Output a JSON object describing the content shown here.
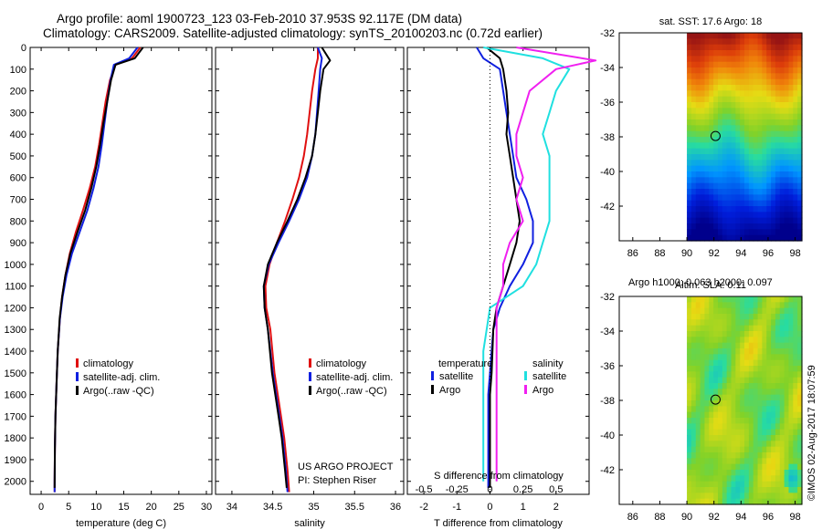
{
  "title": {
    "line1": "Argo profile: aoml 1900723_123 03-Feb-2010 37.953S 92.117E (DM data)",
    "line2": "Climatology: CARS2009. Satellite-adjusted climatology: synTS_20100203.nc (0.72d earlier)"
  },
  "colors": {
    "climatology": "#e01010",
    "satellite": "#1020e0",
    "argo": "#000000",
    "s_satellite": "#20e0e0",
    "s_argo": "#f020f0"
  },
  "chart_data": [
    {
      "type": "line",
      "title": "",
      "xlabel": "temperature (deg C)",
      "ylabel": "",
      "xlim": [
        -2,
        31
      ],
      "ylim": [
        2060,
        0
      ],
      "xticks": [
        0,
        5,
        10,
        15,
        20,
        25,
        30
      ],
      "yticks": [
        0,
        100,
        200,
        300,
        400,
        500,
        600,
        700,
        800,
        900,
        1000,
        1100,
        1200,
        1300,
        1400,
        1500,
        1600,
        1700,
        1800,
        1900,
        2000
      ],
      "legend": [
        "climatology",
        "satellite-adj. clim.",
        "Argo(..raw -QC)"
      ],
      "series": [
        {
          "name": "climatology",
          "color": "#e01010",
          "x": [
            18,
            16.5,
            13.5,
            12.5,
            11.7,
            11.1,
            10.5,
            9.8,
            8.8,
            7.6,
            6.3,
            5.2,
            4.4,
            3.8,
            3.4,
            3.0,
            2.8,
            2.6,
            2.5,
            2.45,
            2.45
          ],
          "y": [
            0,
            50,
            80,
            150,
            250,
            350,
            450,
            550,
            650,
            750,
            850,
            950,
            1050,
            1150,
            1250,
            1400,
            1550,
            1700,
            1850,
            2000,
            2050
          ]
        },
        {
          "name": "satellite-adj. clim.",
          "color": "#1020e0",
          "x": [
            17.5,
            16.0,
            13.2,
            12.6,
            12.0,
            11.5,
            11.0,
            10.4,
            9.5,
            8.4,
            7.0,
            5.6,
            4.6,
            3.9,
            3.4,
            3.0,
            2.8,
            2.6,
            2.5,
            2.45,
            2.45
          ],
          "y": [
            0,
            50,
            80,
            150,
            250,
            350,
            450,
            550,
            650,
            750,
            850,
            950,
            1050,
            1150,
            1250,
            1400,
            1550,
            1700,
            1850,
            2000,
            2050
          ]
        },
        {
          "name": "Argo(..raw -QC)",
          "color": "#000000",
          "x": [
            18.5,
            17.0,
            13.5,
            12.7,
            12.0,
            11.3,
            10.7,
            10.0,
            9.1,
            8.0,
            6.6,
            5.3,
            4.4,
            3.8,
            3.35,
            3.0,
            2.8,
            2.6,
            2.5,
            2.45
          ],
          "y": [
            0,
            50,
            80,
            150,
            250,
            350,
            450,
            550,
            650,
            750,
            850,
            950,
            1050,
            1150,
            1250,
            1400,
            1550,
            1700,
            1850,
            2030
          ]
        }
      ]
    },
    {
      "type": "line",
      "title": "",
      "xlabel": "salinity",
      "ylabel": "",
      "xlim": [
        33.8,
        36.1
      ],
      "ylim": [
        2060,
        0
      ],
      "xticks": [
        34,
        34.5,
        35,
        35.5,
        36
      ],
      "legend": [
        "climatology",
        "satellite-adj. clim.",
        "Argo(..raw -QC)"
      ],
      "series": [
        {
          "name": "climatology",
          "color": "#e01010",
          "x": [
            35.05,
            35.05,
            35.02,
            34.98,
            34.95,
            34.92,
            34.88,
            34.82,
            34.74,
            34.65,
            34.55,
            34.46,
            34.41,
            34.42,
            34.47,
            34.52,
            34.56,
            34.6,
            34.64,
            34.68,
            34.7
          ],
          "y": [
            0,
            50,
            100,
            200,
            300,
            400,
            500,
            600,
            700,
            800,
            900,
            1000,
            1100,
            1200,
            1300,
            1500,
            1600,
            1700,
            1800,
            1950,
            2050
          ]
        },
        {
          "name": "satellite-adj. clim.",
          "color": "#1020e0",
          "x": [
            35.05,
            35.1,
            35.08,
            35.06,
            35.04,
            35.02,
            34.98,
            34.92,
            34.82,
            34.7,
            34.57,
            34.45,
            34.39,
            34.4,
            34.44,
            34.5,
            34.54,
            34.58,
            34.62,
            34.66,
            34.68
          ],
          "y": [
            0,
            50,
            100,
            200,
            300,
            400,
            500,
            600,
            700,
            800,
            900,
            1000,
            1100,
            1200,
            1300,
            1500,
            1600,
            1700,
            1800,
            1950,
            2050
          ]
        },
        {
          "name": "Argo(..raw -QC)",
          "color": "#000000",
          "x": [
            35.1,
            35.2,
            35.12,
            35.08,
            35.05,
            35.02,
            34.98,
            34.9,
            34.8,
            34.68,
            34.55,
            34.44,
            34.39,
            34.4,
            34.44,
            34.49,
            34.53,
            34.57,
            34.61,
            34.65,
            34.67
          ],
          "y": [
            0,
            60,
            100,
            200,
            300,
            400,
            500,
            600,
            700,
            800,
            900,
            1000,
            1100,
            1200,
            1300,
            1500,
            1600,
            1700,
            1800,
            1950,
            2030
          ]
        }
      ]
    },
    {
      "type": "line",
      "title": "",
      "xlabel": "T difference from climatology",
      "xlabel2": "S difference from climatology",
      "ylabel": "",
      "xlim": [
        -2.5,
        3.0
      ],
      "ylim": [
        2060,
        0
      ],
      "xticks": [
        -2,
        -1,
        0,
        1,
        2
      ],
      "xticks2": [
        -0.5,
        -0.25,
        0,
        0.25,
        0.5
      ],
      "legend": [
        "temperature",
        "satellite",
        "Argo",
        "salinity",
        "satellite",
        "Argo"
      ],
      "series": [
        {
          "name": "satellite",
          "color": "#1020e0",
          "x": [
            -0.4,
            -0.2,
            0.3,
            0.4,
            0.5,
            0.6,
            0.7,
            0.8,
            1.1,
            1.3,
            1.3,
            1.0,
            0.6,
            0.3,
            0.1,
            0.0,
            -0.05,
            -0.05,
            -0.05,
            -0.05
          ],
          "y": [
            0,
            50,
            100,
            200,
            300,
            400,
            500,
            600,
            700,
            800,
            900,
            1000,
            1100,
            1200,
            1300,
            1500,
            1600,
            1700,
            1850,
            2030
          ]
        },
        {
          "name": "Argo",
          "color": "#000000",
          "x": [
            -0.1,
            0.3,
            0.4,
            0.5,
            0.55,
            0.5,
            0.6,
            0.7,
            0.8,
            0.9,
            0.8,
            0.6,
            0.4,
            0.2,
            0.1,
            0.05,
            0.0,
            0.0,
            0.0,
            0.0
          ],
          "y": [
            0,
            50,
            100,
            200,
            300,
            400,
            500,
            600,
            700,
            800,
            900,
            1000,
            1100,
            1200,
            1300,
            1500,
            1600,
            1700,
            1850,
            2030
          ]
        },
        {
          "name": "S satellite",
          "color": "#20e0e0",
          "x": [
            -0.05,
            0.4,
            0.6,
            0.5,
            0.45,
            0.4,
            0.45,
            0.45,
            0.45,
            0.45,
            0.4,
            0.35,
            0.25,
            0.0,
            -0.05,
            -0.05,
            -0.05,
            -0.05
          ],
          "y": [
            0,
            50,
            100,
            200,
            300,
            400,
            500,
            600,
            700,
            800,
            900,
            1000,
            1100,
            1200,
            1400,
            1600,
            1800,
            2000
          ]
        },
        {
          "name": "S Argo",
          "color": "#f020f0",
          "x": [
            0.2,
            0.8,
            0.5,
            0.3,
            0.25,
            0.2,
            0.2,
            0.25,
            0.2,
            0.25,
            0.15,
            0.1,
            0.1,
            0.05,
            0.05,
            0.05,
            0.05,
            0.05
          ],
          "y": [
            0,
            60,
            100,
            200,
            300,
            400,
            500,
            600,
            700,
            800,
            900,
            1000,
            1100,
            1200,
            1400,
            1600,
            1800,
            2000
          ]
        }
      ]
    },
    {
      "type": "heatmap",
      "title": "sat. SST: 17.6 Argo: 18",
      "xlim": [
        85,
        98.5
      ],
      "ylim": [
        -44,
        -32
      ],
      "xticks": [
        86,
        88,
        90,
        92,
        94,
        96,
        98
      ],
      "yticks": [
        -32,
        -34,
        -36,
        -38,
        -40,
        -42
      ],
      "data_x_range": [
        90,
        98.5
      ],
      "marker": {
        "lon": 92.117,
        "lat": -37.953
      }
    },
    {
      "type": "heatmap",
      "title": "Altim. SLA: 0.11",
      "subtitle": "Argo h1000: 0.063 h2000: 0.097",
      "xlim": [
        85,
        98.5
      ],
      "ylim": [
        -44,
        -32
      ],
      "xticks": [
        86,
        88,
        90,
        92,
        94,
        96,
        98
      ],
      "yticks": [
        -32,
        -34,
        -36,
        -38,
        -40,
        -42
      ],
      "data_x_range": [
        90,
        98.5
      ],
      "marker": {
        "lon": 92.117,
        "lat": -37.953
      }
    }
  ],
  "annotations": {
    "project": "US ARGO PROJECT",
    "pi": "PI: Stephen Riser",
    "legend_temperature": "temperature",
    "legend_salinity": "salinity",
    "legend_satellite": "satellite",
    "legend_argo": "Argo",
    "credit": "©IMOS 02-Aug-2017 18:07:59"
  }
}
